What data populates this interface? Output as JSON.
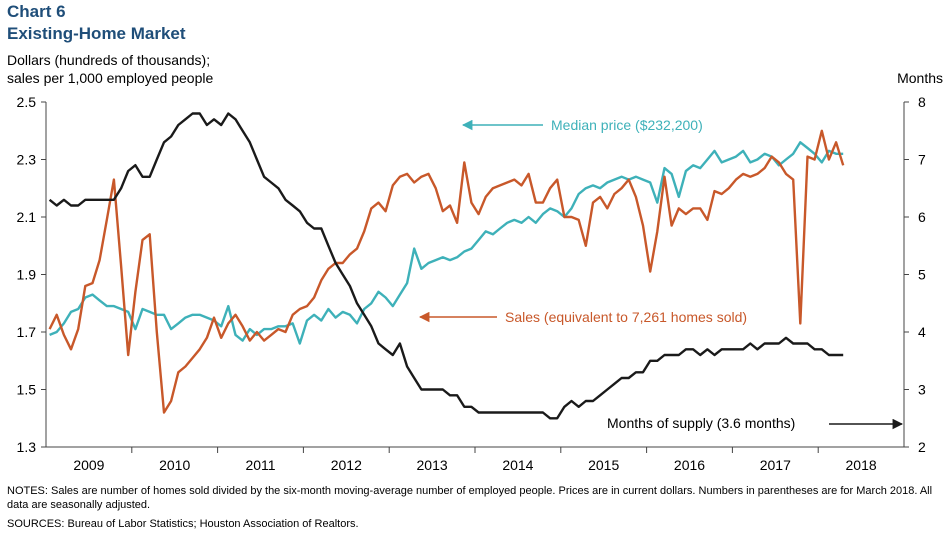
{
  "header": {
    "chart_number": "Chart 6",
    "title": "Existing-Home Market",
    "y_left_label_line1": "Dollars (hundreds of thousands);",
    "y_left_label_line2": "sales per 1,000 employed people",
    "y_right_label": "Months"
  },
  "annotations": {
    "price": "Median price ($232,200)",
    "sales": "Sales (equivalent to 7,261 homes sold)",
    "months": "Months of supply (3.6 months)"
  },
  "footer": {
    "notes": "NOTES: Sales are number of homes sold divided by the six-month moving-average number of employed people. Prices are in current dollars. Numbers in parentheses are for March 2018. All data are seasonally adjusted.",
    "sources": "SOURCES: Bureau of Labor Statistics; Houston Association of Realtors."
  },
  "colors": {
    "price": "#3eb1b9",
    "sales": "#c8582a",
    "months": "#1a1a1a",
    "axis": "#444444"
  },
  "chart_data": {
    "type": "line",
    "x_start": "2009-01",
    "x_end": "2018-03",
    "x_axis_years": [
      "2009",
      "2010",
      "2011",
      "2012",
      "2013",
      "2014",
      "2015",
      "2016",
      "2017",
      "2018"
    ],
    "y_left": {
      "ylim": [
        1.3,
        2.5
      ],
      "ticks": [
        "1.3",
        "1.5",
        "1.7",
        "1.9",
        "2.1",
        "2.3",
        "2.5"
      ]
    },
    "y_right": {
      "ylim": [
        2,
        8
      ],
      "ticks": [
        "2",
        "3",
        "4",
        "5",
        "6",
        "7",
        "8"
      ]
    },
    "grid": false,
    "series": [
      {
        "name": "Median price ($232,200)",
        "axis": "left",
        "values": [
          1.69,
          1.7,
          1.73,
          1.77,
          1.78,
          1.82,
          1.83,
          1.81,
          1.79,
          1.79,
          1.78,
          1.77,
          1.71,
          1.78,
          1.77,
          1.76,
          1.76,
          1.71,
          1.73,
          1.75,
          1.76,
          1.76,
          1.75,
          1.74,
          1.72,
          1.79,
          1.69,
          1.67,
          1.71,
          1.69,
          1.71,
          1.71,
          1.72,
          1.72,
          1.73,
          1.66,
          1.74,
          1.76,
          1.74,
          1.78,
          1.75,
          1.77,
          1.76,
          1.73,
          1.78,
          1.8,
          1.84,
          1.82,
          1.79,
          1.83,
          1.87,
          1.99,
          1.92,
          1.94,
          1.95,
          1.96,
          1.95,
          1.96,
          1.98,
          1.99,
          2.02,
          2.05,
          2.04,
          2.06,
          2.08,
          2.09,
          2.08,
          2.1,
          2.08,
          2.11,
          2.13,
          2.12,
          2.1,
          2.13,
          2.18,
          2.2,
          2.21,
          2.2,
          2.22,
          2.23,
          2.24,
          2.23,
          2.24,
          2.23,
          2.22,
          2.15,
          2.27,
          2.25,
          2.17,
          2.26,
          2.28,
          2.27,
          2.3,
          2.33,
          2.29,
          2.3,
          2.31,
          2.33,
          2.29,
          2.3,
          2.32,
          2.31,
          2.28,
          2.3,
          2.32,
          2.36,
          2.34,
          2.32,
          2.29,
          2.33,
          2.32,
          2.32
        ]
      },
      {
        "name": "Sales (equivalent to 7,261 homes sold)",
        "axis": "left",
        "values": [
          1.71,
          1.76,
          1.69,
          1.64,
          1.71,
          1.86,
          1.87,
          1.95,
          2.09,
          2.23,
          1.93,
          1.62,
          1.84,
          2.02,
          2.04,
          1.7,
          1.42,
          1.46,
          1.56,
          1.58,
          1.61,
          1.64,
          1.68,
          1.75,
          1.68,
          1.73,
          1.76,
          1.72,
          1.67,
          1.7,
          1.67,
          1.69,
          1.71,
          1.7,
          1.76,
          1.78,
          1.79,
          1.82,
          1.88,
          1.92,
          1.94,
          1.94,
          1.97,
          1.99,
          2.05,
          2.13,
          2.15,
          2.12,
          2.21,
          2.24,
          2.25,
          2.22,
          2.24,
          2.25,
          2.2,
          2.12,
          2.14,
          2.08,
          2.29,
          2.15,
          2.11,
          2.17,
          2.2,
          2.21,
          2.22,
          2.23,
          2.21,
          2.25,
          2.15,
          2.15,
          2.2,
          2.23,
          2.1,
          2.1,
          2.09,
          2.0,
          2.15,
          2.17,
          2.13,
          2.18,
          2.2,
          2.23,
          2.17,
          2.07,
          1.91,
          2.05,
          2.24,
          2.07,
          2.13,
          2.11,
          2.13,
          2.13,
          2.09,
          2.19,
          2.18,
          2.2,
          2.23,
          2.25,
          2.24,
          2.25,
          2.27,
          2.31,
          2.29,
          2.25,
          2.23,
          1.73,
          2.31,
          2.3,
          2.4,
          2.3,
          2.36,
          2.28
        ]
      },
      {
        "name": "Months of supply (3.6 months)",
        "axis": "right",
        "values": [
          6.3,
          6.2,
          6.3,
          6.2,
          6.2,
          6.3,
          6.3,
          6.3,
          6.3,
          6.3,
          6.5,
          6.8,
          6.9,
          6.7,
          6.7,
          7.0,
          7.3,
          7.4,
          7.6,
          7.7,
          7.8,
          7.8,
          7.6,
          7.7,
          7.6,
          7.8,
          7.7,
          7.5,
          7.3,
          7.0,
          6.7,
          6.6,
          6.5,
          6.3,
          6.2,
          6.1,
          5.9,
          5.8,
          5.8,
          5.5,
          5.2,
          5.0,
          4.8,
          4.5,
          4.3,
          4.1,
          3.8,
          3.7,
          3.6,
          3.8,
          3.4,
          3.2,
          3.0,
          3.0,
          3.0,
          3.0,
          2.9,
          2.9,
          2.7,
          2.7,
          2.6,
          2.6,
          2.6,
          2.6,
          2.6,
          2.6,
          2.6,
          2.6,
          2.6,
          2.6,
          2.5,
          2.5,
          2.7,
          2.8,
          2.7,
          2.8,
          2.8,
          2.9,
          3.0,
          3.1,
          3.2,
          3.2,
          3.3,
          3.3,
          3.5,
          3.5,
          3.6,
          3.6,
          3.6,
          3.7,
          3.7,
          3.6,
          3.7,
          3.6,
          3.7,
          3.7,
          3.7,
          3.7,
          3.8,
          3.7,
          3.8,
          3.8,
          3.8,
          3.9,
          3.8,
          3.8,
          3.8,
          3.7,
          3.7,
          3.6,
          3.6,
          3.6
        ]
      }
    ]
  }
}
